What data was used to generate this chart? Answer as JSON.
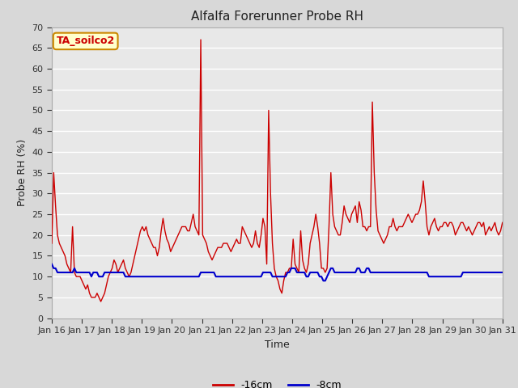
{
  "title": "Alfalfa Forerunner Probe RH",
  "xlabel": "Time",
  "ylabel": "Probe RH (%)",
  "ylim": [
    0,
    70
  ],
  "yticks": [
    0,
    5,
    10,
    15,
    20,
    25,
    30,
    35,
    40,
    45,
    50,
    55,
    60,
    65,
    70
  ],
  "bg_color": "#d8d8d8",
  "plot_bg_color": "#e8e8e8",
  "grid_color": "#ffffff",
  "line1_color": "#cc0000",
  "line2_color": "#0000cc",
  "line1_label": "-16cm",
  "line2_label": "-8cm",
  "annotation_text": "TA_soilco2",
  "annotation_bg": "#ffffcc",
  "annotation_border": "#cc8800",
  "annotation_text_color": "#cc0000",
  "x_tick_labels": [
    "Jan 16",
    "Jan 17",
    "Jan 18",
    "Jan 19",
    "Jan 20",
    "Jan 21",
    "Jan 22",
    "Jan 23",
    "Jan 24",
    "Jan 25",
    "Jan 26",
    "Jan 27",
    "Jan 28",
    "Jan 29",
    "Jan 30",
    "Jan 31"
  ],
  "red_data": [
    18,
    35,
    27,
    20,
    18,
    17,
    16,
    15,
    13,
    12,
    11,
    22,
    11,
    10,
    10,
    10,
    9,
    8,
    7,
    8,
    6,
    5,
    5,
    5,
    6,
    5,
    4,
    5,
    6,
    8,
    10,
    11,
    12,
    14,
    13,
    11,
    12,
    13,
    14,
    12,
    11,
    10,
    11,
    13,
    15,
    17,
    19,
    21,
    22,
    21,
    22,
    20,
    19,
    18,
    17,
    17,
    15,
    17,
    21,
    24,
    21,
    19,
    18,
    16,
    17,
    18,
    19,
    20,
    21,
    22,
    22,
    22,
    21,
    21,
    23,
    25,
    22,
    21,
    20,
    67,
    20,
    19,
    18,
    16,
    15,
    14,
    15,
    16,
    17,
    17,
    17,
    18,
    18,
    18,
    17,
    16,
    17,
    18,
    19,
    18,
    18,
    22,
    21,
    20,
    19,
    18,
    17,
    18,
    21,
    18,
    17,
    20,
    24,
    22,
    13,
    50,
    30,
    18,
    12,
    10,
    9,
    7,
    6,
    9,
    11,
    11,
    12,
    12,
    19,
    13,
    12,
    11,
    21,
    14,
    12,
    11,
    13,
    18,
    20,
    22,
    25,
    22,
    18,
    12,
    12,
    11,
    12,
    22,
    35,
    25,
    22,
    21,
    20,
    20,
    23,
    27,
    25,
    24,
    23,
    25,
    26,
    27,
    23,
    28,
    26,
    22,
    22,
    21,
    22,
    22,
    52,
    35,
    26,
    21,
    20,
    19,
    18,
    19,
    20,
    22,
    22,
    24,
    22,
    21,
    22,
    22,
    22,
    23,
    24,
    25,
    24,
    23,
    24,
    25,
    25,
    26,
    28,
    33,
    28,
    22,
    20,
    22,
    23,
    24,
    22,
    21,
    22,
    22,
    23,
    23,
    22,
    23,
    23,
    22,
    20,
    21,
    22,
    23,
    23,
    22,
    21,
    22,
    21,
    20,
    21,
    22,
    23,
    23,
    22,
    23,
    20,
    21,
    22,
    21,
    22,
    23,
    21,
    20,
    21,
    23
  ],
  "blue_data": [
    13,
    12,
    12,
    11,
    11,
    11,
    11,
    11,
    11,
    11,
    11,
    11,
    12,
    11,
    11,
    11,
    11,
    11,
    11,
    11,
    11,
    10,
    11,
    11,
    11,
    10,
    10,
    10,
    11,
    11,
    11,
    11,
    11,
    11,
    11,
    11,
    11,
    11,
    11,
    10,
    10,
    10,
    10,
    10,
    10,
    10,
    10,
    10,
    10,
    10,
    10,
    10,
    10,
    10,
    10,
    10,
    10,
    10,
    10,
    10,
    10,
    10,
    10,
    10,
    10,
    10,
    10,
    10,
    10,
    10,
    10,
    10,
    10,
    10,
    10,
    10,
    10,
    10,
    10,
    11,
    11,
    11,
    11,
    11,
    11,
    11,
    11,
    10,
    10,
    10,
    10,
    10,
    10,
    10,
    10,
    10,
    10,
    10,
    10,
    10,
    10,
    10,
    10,
    10,
    10,
    10,
    10,
    10,
    10,
    10,
    10,
    10,
    11,
    11,
    11,
    11,
    11,
    10,
    10,
    10,
    10,
    10,
    10,
    10,
    10,
    11,
    11,
    12,
    12,
    12,
    11,
    11,
    11,
    11,
    11,
    10,
    10,
    11,
    11,
    11,
    11,
    11,
    10,
    10,
    9,
    9,
    10,
    11,
    12,
    12,
    11,
    11,
    11,
    11,
    11,
    11,
    11,
    11,
    11,
    11,
    11,
    11,
    12,
    12,
    11,
    11,
    11,
    12,
    12,
    11,
    11,
    11,
    11,
    11,
    11,
    11,
    11,
    11,
    11,
    11,
    11,
    11,
    11,
    11,
    11,
    11,
    11,
    11,
    11,
    11,
    11,
    11,
    11,
    11,
    11,
    11,
    11,
    11,
    11,
    11,
    10,
    10,
    10,
    10,
    10,
    10,
    10,
    10,
    10,
    10,
    10,
    10,
    10,
    10,
    10,
    10,
    10,
    10,
    11,
    11,
    11,
    11,
    11,
    11,
    11,
    11,
    11,
    11,
    11,
    11,
    11,
    11,
    11,
    11,
    11,
    11,
    11,
    11,
    11,
    11
  ]
}
